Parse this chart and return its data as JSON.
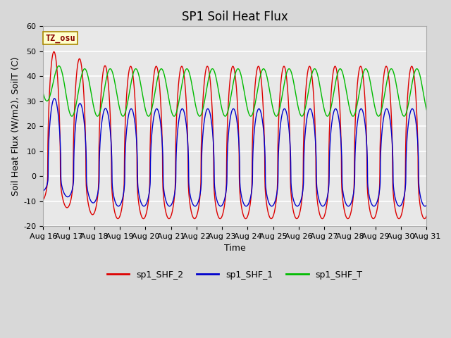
{
  "title": "SP1 Soil Heat Flux",
  "ylabel": "Soil Heat Flux (W/m2), SoilT (C)",
  "xlabel": "Time",
  "ylim": [
    -20,
    60
  ],
  "yticks": [
    -20,
    -10,
    0,
    10,
    20,
    30,
    40,
    50,
    60
  ],
  "xtick_labels": [
    "Aug 16",
    "Aug 17",
    "Aug 18",
    "Aug 19",
    "Aug 20",
    "Aug 21",
    "Aug 22",
    "Aug 23",
    "Aug 24",
    "Aug 25",
    "Aug 26",
    "Aug 27",
    "Aug 28",
    "Aug 29",
    "Aug 30",
    "Aug 31"
  ],
  "color_shf2": "#dd0000",
  "color_shf1": "#0000cc",
  "color_shft": "#00bb00",
  "legend_labels": [
    "sp1_SHF_2",
    "sp1_SHF_1",
    "sp1_SHF_T"
  ],
  "tz_label": "TZ_osu",
  "background_color": "#e8e8e8",
  "grid_color": "#ffffff",
  "n_days": 15,
  "title_fontsize": 12,
  "axis_label_fontsize": 9,
  "tick_fontsize": 8
}
